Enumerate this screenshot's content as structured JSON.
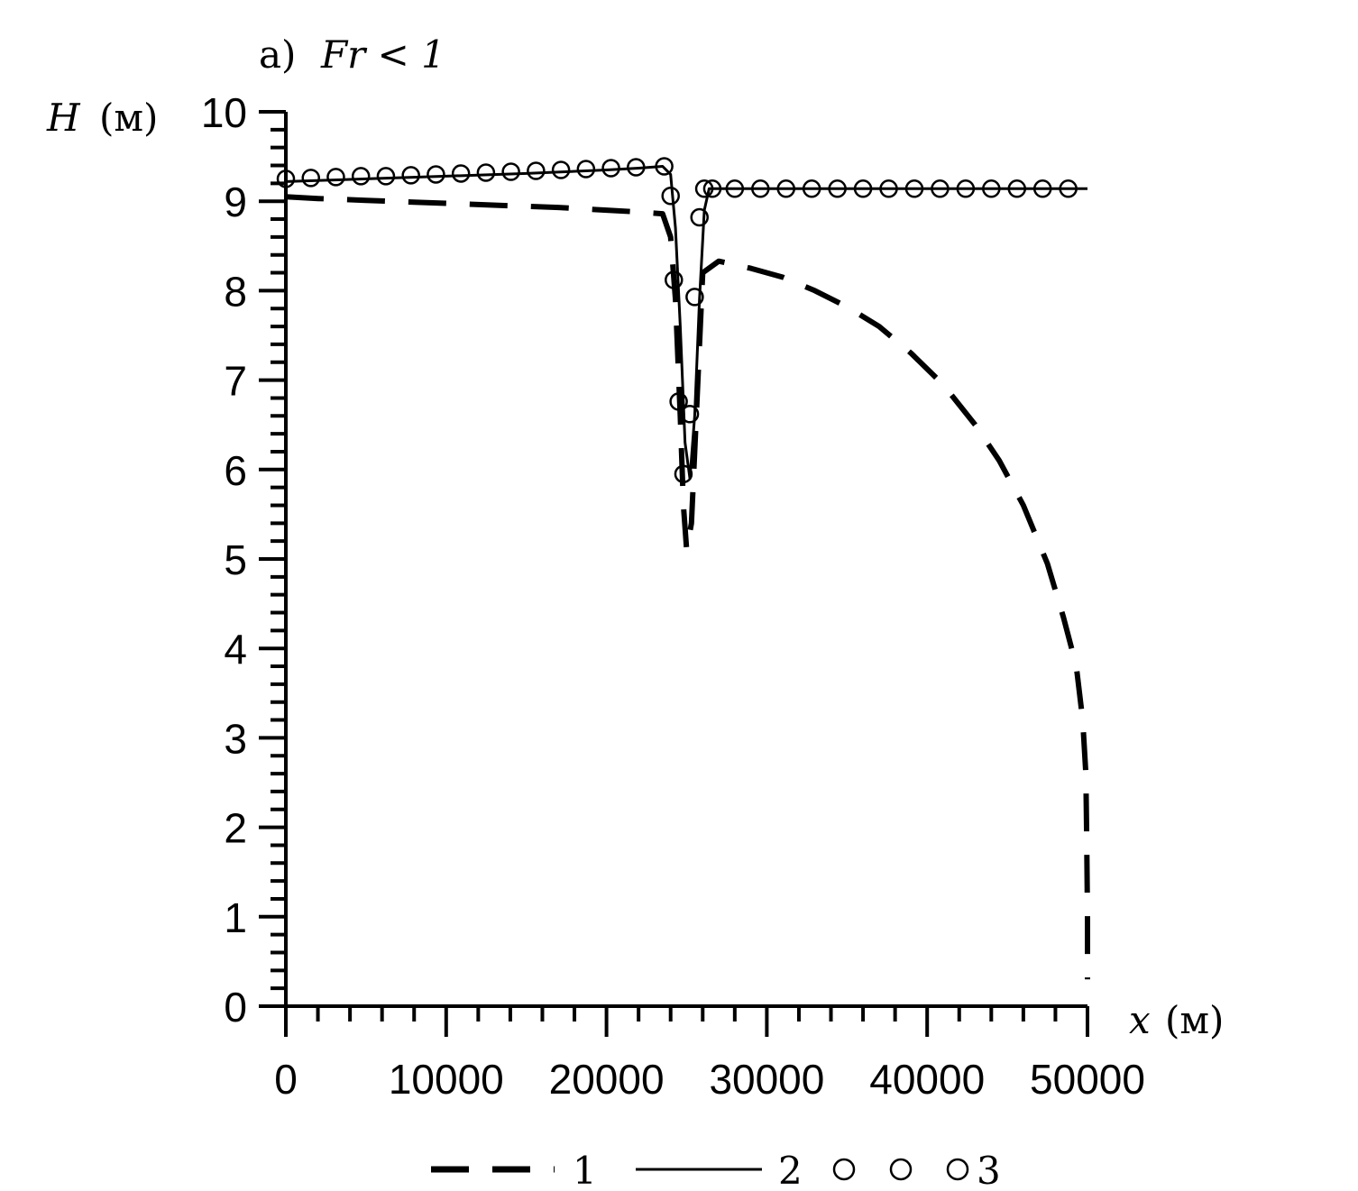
{
  "chart_data": {
    "type": "line",
    "panel_label": "a)",
    "title": "Fr < 1",
    "xlabel": "x",
    "xunit": "(м)",
    "ylabel": "H",
    "yunit": "(м)",
    "xlim": [
      0,
      50000
    ],
    "ylim": [
      0,
      10
    ],
    "x_ticks": [
      0,
      10000,
      20000,
      30000,
      40000,
      50000
    ],
    "y_ticks": [
      0,
      1,
      2,
      3,
      4,
      5,
      6,
      7,
      8,
      9,
      10
    ],
    "grid": false,
    "legend_position": "bottom",
    "series": [
      {
        "name": "1",
        "style": "dashed",
        "color": "#000000",
        "x": [
          0,
          2000,
          5000,
          8000,
          11000,
          14000,
          17000,
          20000,
          22000,
          23500,
          24000,
          24300,
          24600,
          24800,
          25000,
          25300,
          25600,
          26000,
          27000,
          29000,
          31000,
          33000,
          35000,
          37000,
          39000,
          41000,
          43000,
          44500,
          46000,
          47500,
          48500,
          49300,
          49700,
          49900,
          49950,
          50000,
          50000
        ],
        "y": [
          9.05,
          9.03,
          9.01,
          8.99,
          8.97,
          8.95,
          8.93,
          8.9,
          8.88,
          8.86,
          8.6,
          7.9,
          6.6,
          5.6,
          5.1,
          5.4,
          6.6,
          8.2,
          8.33,
          8.25,
          8.15,
          8.0,
          7.82,
          7.6,
          7.3,
          6.95,
          6.5,
          6.1,
          5.6,
          4.95,
          4.35,
          3.8,
          3.2,
          2.6,
          1.9,
          1.0,
          0.3
        ]
      },
      {
        "name": "2",
        "style": "solid",
        "color": "#000000",
        "x": [
          0,
          5000,
          10000,
          15000,
          20000,
          22000,
          23500,
          24000,
          24300,
          24600,
          24900,
          25200,
          25500,
          25800,
          26100,
          26400,
          27000,
          30000,
          35000,
          40000,
          45000,
          50000
        ],
        "y": [
          9.22,
          9.25,
          9.28,
          9.31,
          9.35,
          9.37,
          9.39,
          9.3,
          8.7,
          7.6,
          6.3,
          5.9,
          6.6,
          7.9,
          8.9,
          9.14,
          9.14,
          9.14,
          9.14,
          9.14,
          9.14,
          9.14
        ]
      },
      {
        "name": "3",
        "style": "markers",
        "marker": "circle",
        "color": "#000000",
        "x": [
          0,
          1560,
          3120,
          4680,
          6240,
          7800,
          9360,
          10920,
          12480,
          14040,
          15600,
          17160,
          18720,
          20280,
          21840,
          23600,
          24000,
          24200,
          24500,
          24800,
          25200,
          25500,
          25800,
          26100,
          26600,
          28000,
          29600,
          31200,
          32800,
          34400,
          36000,
          37600,
          39200,
          40800,
          42400,
          44000,
          45600,
          47200,
          48800
        ],
        "y": [
          9.25,
          9.26,
          9.27,
          9.28,
          9.28,
          9.29,
          9.3,
          9.31,
          9.32,
          9.33,
          9.34,
          9.35,
          9.36,
          9.37,
          9.38,
          9.39,
          9.06,
          8.12,
          6.76,
          5.95,
          6.62,
          7.93,
          8.82,
          9.14,
          9.14,
          9.14,
          9.14,
          9.14,
          9.14,
          9.14,
          9.14,
          9.14,
          9.14,
          9.14,
          9.14,
          9.14,
          9.14,
          9.14,
          9.14
        ]
      }
    ]
  }
}
